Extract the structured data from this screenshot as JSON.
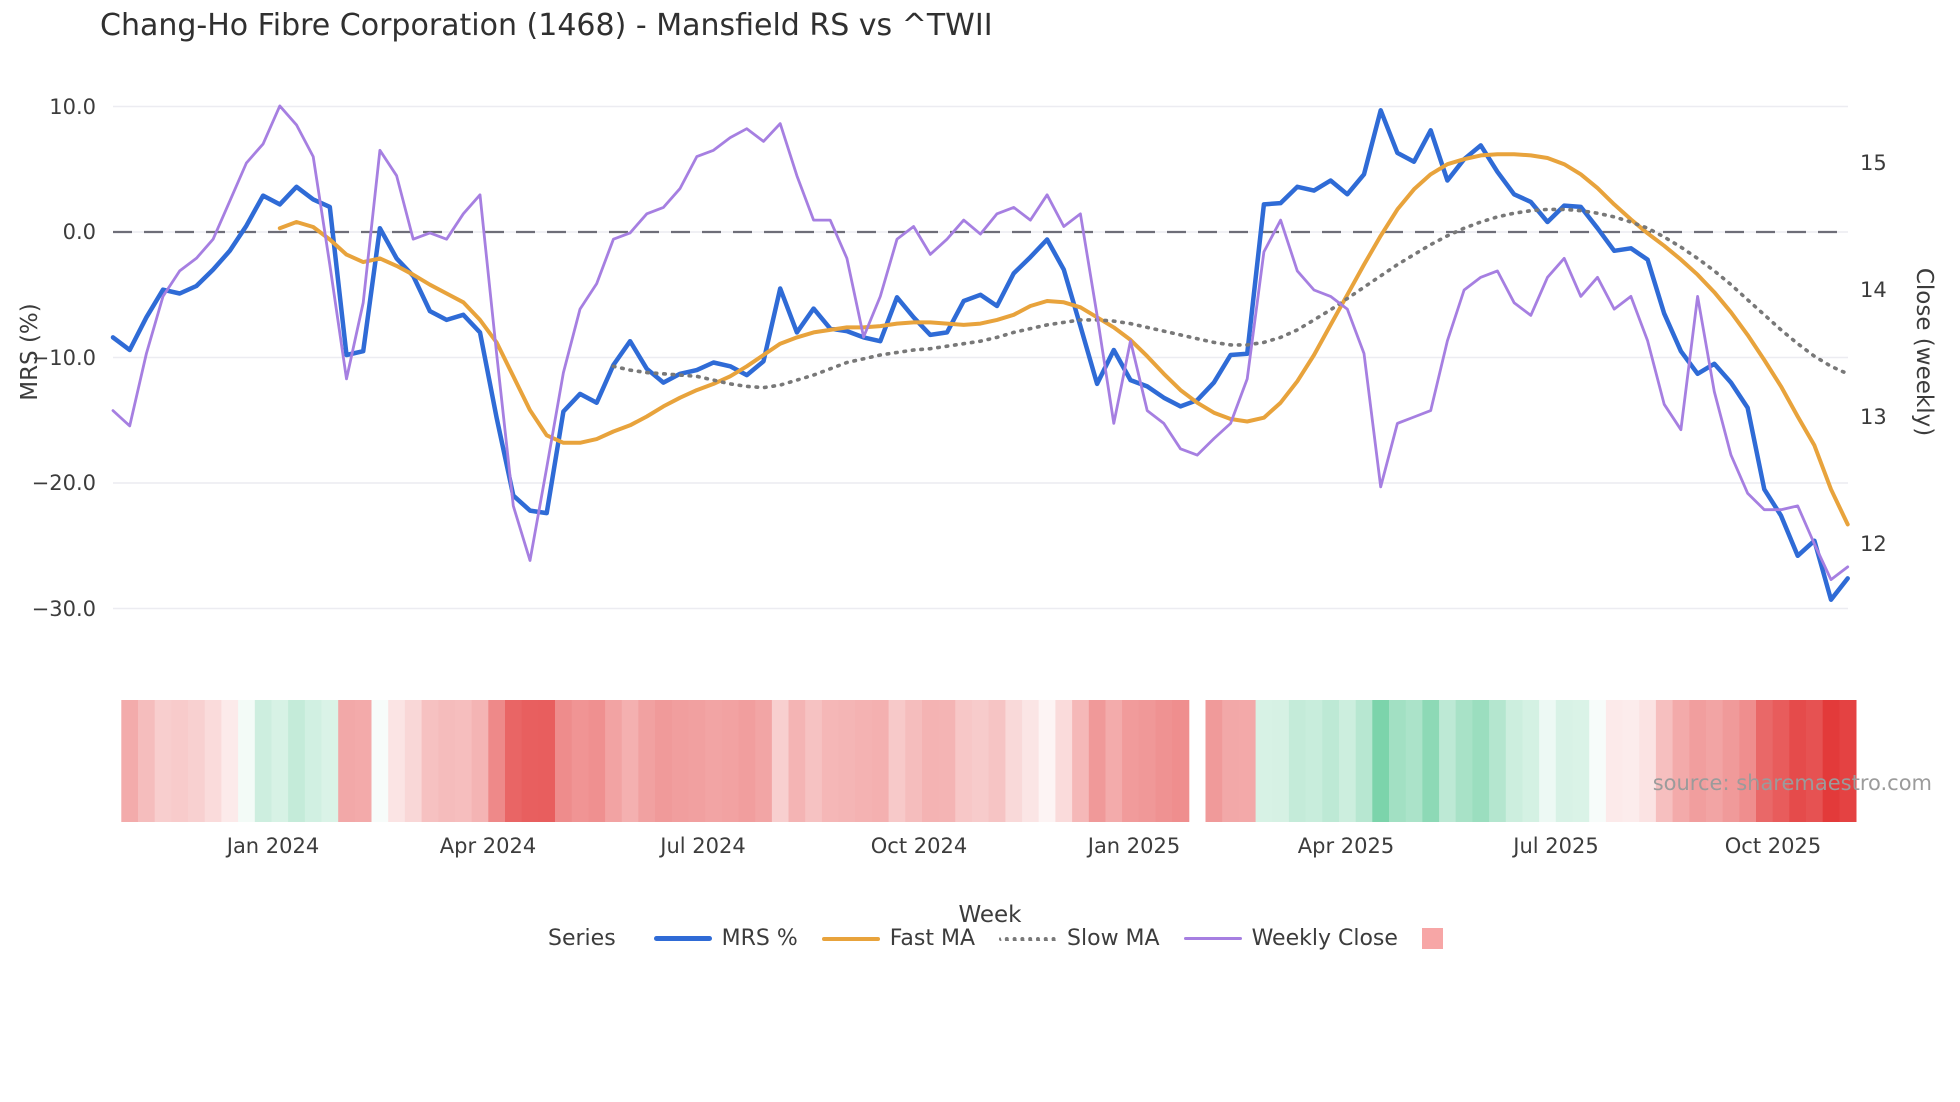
{
  "title": "Chang-Ho Fibre Corporation (1468) - Mansfield RS vs ^TWII",
  "source_text": "source: sharemaestro.com",
  "legend": {
    "series_label": "Series",
    "heat_swatch_color": "#F7A6A6"
  },
  "colors": {
    "background": "#ffffff",
    "grid": "#ECECF1",
    "zero_line": "#6E6E78",
    "text": "#3c3c3c",
    "source": "#9b9b9b"
  },
  "chart_data": {
    "type": "line",
    "title": "Chang-Ho Fibre Corporation (1468) - Mansfield RS vs ^TWII",
    "xlabel": "Week",
    "x_tick_labels": [
      "Jan 2024",
      "Apr 2024",
      "Jul 2024",
      "Oct 2024",
      "Jan 2025",
      "Apr 2025",
      "Jul 2025",
      "Oct 2025"
    ],
    "x_tick_weeks": [
      9.6,
      22.5,
      35.4,
      48.3,
      61.2,
      73.9,
      86.5,
      99.5
    ],
    "left_axis": {
      "label": "MRS (%)",
      "ticks": [
        "10.0",
        "0.0",
        "−10.0",
        "−20.0",
        "−30.0"
      ],
      "tick_values": [
        10,
        0,
        -10,
        -20,
        -30
      ],
      "range": [
        -33,
        12
      ]
    },
    "right_axis": {
      "label": "Close (weekly)",
      "ticks": [
        "15",
        "14",
        "13",
        "12"
      ],
      "tick_values": [
        15,
        14,
        13,
        12
      ],
      "range": [
        11.5,
        15.6
      ]
    },
    "zero_line": true,
    "legend_position": "bottom",
    "grid": "horizontal",
    "series": [
      {
        "name": "MRS %",
        "axis": "left",
        "color": "#2F6BD6",
        "width": 4.5,
        "style": "solid",
        "values": [
          -8.4,
          -9.4,
          -6.8,
          -4.6,
          -4.9,
          -4.3,
          -3.0,
          -1.5,
          0.5,
          2.9,
          2.2,
          3.6,
          2.6,
          2.0,
          -9.8,
          -9.5,
          0.3,
          -2.1,
          -3.5,
          -6.3,
          -7.0,
          -6.6,
          -8.0,
          -14.8,
          -21.0,
          -22.2,
          -22.4,
          -14.3,
          -12.9,
          -13.6,
          -10.6,
          -8.7,
          -10.9,
          -12.0,
          -11.3,
          -11.0,
          -10.4,
          -10.7,
          -11.4,
          -10.3,
          -4.5,
          -8.0,
          -6.1,
          -7.7,
          -7.9,
          -8.4,
          -8.7,
          -5.2,
          -6.8,
          -8.2,
          -8.0,
          -5.5,
          -5.0,
          -5.9,
          -3.3,
          -2.0,
          -0.6,
          -3.0,
          -7.5,
          -12.1,
          -9.4,
          -11.8,
          -12.3,
          -13.2,
          -13.9,
          -13.4,
          -12.0,
          -9.8,
          -9.7,
          2.2,
          2.3,
          3.6,
          3.3,
          4.1,
          3.0,
          4.6,
          9.7,
          6.3,
          5.6,
          8.1,
          4.1,
          5.8,
          6.9,
          4.8,
          3.0,
          2.4,
          0.8,
          2.1,
          2.0,
          0.3,
          -1.5,
          -1.3,
          -2.2,
          -6.5,
          -9.5,
          -11.3,
          -10.5,
          -12.0,
          -14.0,
          -20.5,
          -22.6,
          -25.8,
          -24.6,
          -29.3,
          -27.6
        ]
      },
      {
        "name": "Fast MA",
        "axis": "left",
        "color": "#E8A33C",
        "width": 4,
        "style": "solid",
        "values": [
          null,
          null,
          null,
          null,
          null,
          null,
          null,
          null,
          null,
          null,
          0.3,
          0.8,
          0.4,
          -0.6,
          -1.8,
          -2.4,
          -2.1,
          -2.7,
          -3.4,
          -4.2,
          -4.9,
          -5.6,
          -7.0,
          -8.8,
          -11.5,
          -14.2,
          -16.2,
          -16.8,
          -16.8,
          -16.5,
          -15.9,
          -15.4,
          -14.7,
          -13.9,
          -13.2,
          -12.6,
          -12.1,
          -11.5,
          -10.7,
          -9.8,
          -8.9,
          -8.4,
          -8.0,
          -7.8,
          -7.6,
          -7.6,
          -7.5,
          -7.3,
          -7.2,
          -7.2,
          -7.3,
          -7.4,
          -7.3,
          -7.0,
          -6.6,
          -5.9,
          -5.5,
          -5.6,
          -6.0,
          -6.8,
          -7.6,
          -8.6,
          -9.9,
          -11.3,
          -12.6,
          -13.6,
          -14.4,
          -14.9,
          -15.1,
          -14.8,
          -13.6,
          -11.9,
          -9.8,
          -7.4,
          -5.0,
          -2.6,
          -0.3,
          1.8,
          3.4,
          4.6,
          5.4,
          5.8,
          6.1,
          6.2,
          6.2,
          6.1,
          5.9,
          5.4,
          4.6,
          3.5,
          2.2,
          1.0,
          -0.1,
          -1.1,
          -2.2,
          -3.4,
          -4.8,
          -6.4,
          -8.2,
          -10.2,
          -12.3,
          -14.7,
          -17.0,
          -20.5,
          -23.3
        ]
      },
      {
        "name": "Slow MA",
        "axis": "left",
        "color": "#787878",
        "width": 3.6,
        "style": "dotted",
        "values": [
          null,
          null,
          null,
          null,
          null,
          null,
          null,
          null,
          null,
          null,
          null,
          null,
          null,
          null,
          null,
          null,
          null,
          null,
          null,
          null,
          null,
          null,
          null,
          null,
          null,
          null,
          null,
          null,
          null,
          null,
          -10.7,
          -11.0,
          -11.2,
          -11.3,
          -11.4,
          -11.5,
          -11.8,
          -12.1,
          -12.3,
          -12.4,
          -12.2,
          -11.8,
          -11.4,
          -10.9,
          -10.4,
          -10.1,
          -9.8,
          -9.6,
          -9.4,
          -9.3,
          -9.1,
          -8.9,
          -8.7,
          -8.4,
          -8.0,
          -7.7,
          -7.4,
          -7.2,
          -7.0,
          -7.0,
          -7.1,
          -7.3,
          -7.6,
          -7.9,
          -8.2,
          -8.5,
          -8.8,
          -9.0,
          -9.0,
          -8.8,
          -8.4,
          -7.8,
          -7.0,
          -6.2,
          -5.3,
          -4.4,
          -3.5,
          -2.6,
          -1.8,
          -1.0,
          -0.3,
          0.3,
          0.8,
          1.2,
          1.5,
          1.7,
          1.8,
          1.8,
          1.7,
          1.5,
          1.2,
          0.8,
          0.3,
          -0.4,
          -1.2,
          -2.1,
          -3.1,
          -4.2,
          -5.4,
          -6.6,
          -7.8,
          -8.9,
          -9.9,
          -10.7,
          -11.3
        ]
      },
      {
        "name": "Weekly Close",
        "axis": "right",
        "color": "#A67FE1",
        "width": 2.8,
        "style": "solid",
        "values": [
          13.05,
          12.93,
          13.5,
          13.95,
          14.15,
          14.25,
          14.4,
          14.7,
          15.0,
          15.15,
          15.45,
          15.3,
          15.05,
          14.2,
          13.3,
          13.9,
          15.1,
          14.9,
          14.4,
          14.45,
          14.4,
          14.6,
          14.75,
          13.5,
          12.3,
          11.87,
          12.6,
          13.35,
          13.85,
          14.05,
          14.4,
          14.45,
          14.6,
          14.65,
          14.8,
          15.05,
          15.1,
          15.2,
          15.27,
          15.17,
          15.31,
          14.9,
          14.55,
          14.55,
          14.25,
          13.63,
          13.95,
          14.4,
          14.5,
          14.28,
          14.4,
          14.55,
          14.44,
          14.6,
          14.65,
          14.55,
          14.75,
          14.5,
          14.6,
          13.8,
          12.95,
          13.6,
          13.05,
          12.95,
          12.75,
          12.7,
          12.83,
          12.95,
          13.3,
          14.3,
          14.55,
          14.15,
          14.0,
          13.95,
          13.85,
          13.5,
          12.45,
          12.95,
          13.0,
          13.05,
          13.6,
          14.0,
          14.1,
          14.15,
          13.9,
          13.8,
          14.1,
          14.25,
          13.95,
          14.1,
          13.85,
          13.95,
          13.6,
          13.1,
          12.9,
          13.95,
          13.2,
          12.7,
          12.4,
          12.27,
          12.27,
          12.3,
          12.0,
          11.72,
          11.82
        ]
      }
    ],
    "heatmap": {
      "description": "weekly strip colored by MRS % value (red negative, green positive)",
      "source_series": "MRS %",
      "start_week": 1,
      "end_week": 104,
      "gap_weeks": [
        65
      ],
      "negative_color": "#E23636",
      "positive_color": "#6ECFA2"
    }
  }
}
